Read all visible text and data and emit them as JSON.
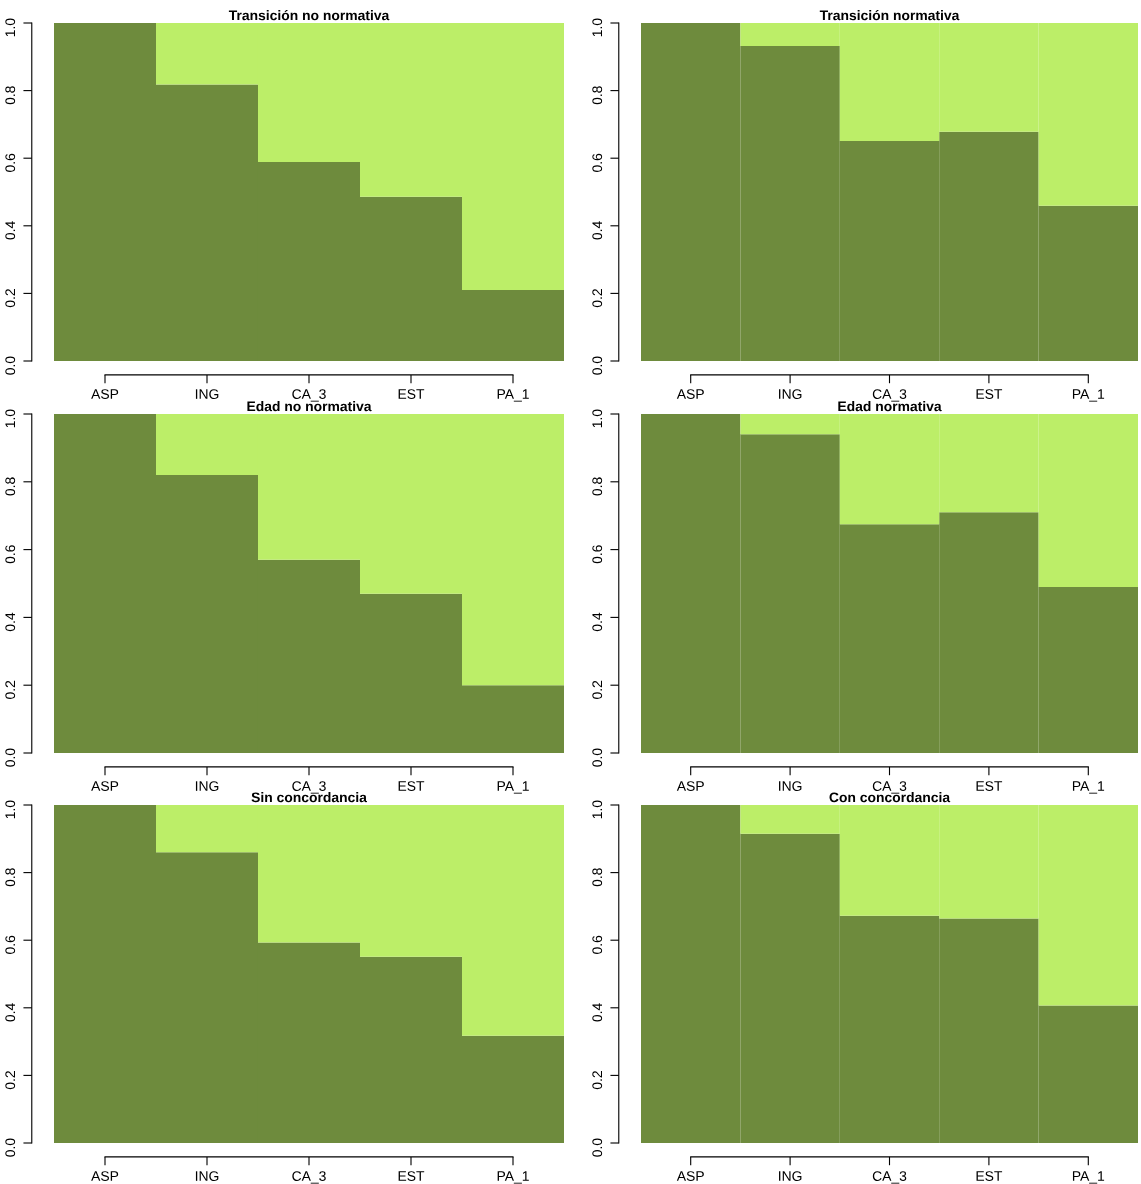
{
  "chart_data": [
    {
      "type": "bar",
      "stacked": true,
      "title": "Transición no normativa",
      "categories": [
        "ASP",
        "ING",
        "CA_3",
        "EST",
        "PA_1"
      ],
      "ylim": [
        0,
        1
      ],
      "yticks": [
        {
          "value": 0,
          "label": "0.0"
        },
        {
          "value": 0.2,
          "label": "0.2"
        },
        {
          "value": 0.4,
          "label": "0.4"
        },
        {
          "value": 0.6,
          "label": "0.6"
        },
        {
          "value": 0.8,
          "label": "0.8"
        },
        {
          "value": 1,
          "label": "1.0"
        }
      ],
      "series": [
        {
          "color": "#6e8b3d",
          "values": [
            1.0,
            0.818,
            0.589,
            0.486,
            0.21
          ]
        },
        {
          "color": "#bcee68",
          "values": [
            0.0,
            0.182,
            0.411,
            0.514,
            0.79
          ]
        }
      ]
    },
    {
      "type": "bar",
      "stacked": true,
      "title": "Transición normativa",
      "categories": [
        "ASP",
        "ING",
        "CA_3",
        "EST",
        "PA_1"
      ],
      "ylim": [
        0,
        1
      ],
      "yticks": [
        {
          "value": 0,
          "label": "0.0"
        },
        {
          "value": 0.2,
          "label": "0.2"
        },
        {
          "value": 0.4,
          "label": "0.4"
        },
        {
          "value": 0.6,
          "label": "0.6"
        },
        {
          "value": 0.8,
          "label": "0.8"
        },
        {
          "value": 1,
          "label": "1.0"
        }
      ],
      "series": [
        {
          "color": "#6e8b3d",
          "values": [
            1.0,
            0.932,
            0.651,
            0.678,
            0.459
          ]
        },
        {
          "color": "#bcee68",
          "values": [
            0.0,
            0.068,
            0.349,
            0.322,
            0.541
          ]
        }
      ]
    },
    {
      "type": "bar",
      "stacked": true,
      "title": "Edad no normativa",
      "categories": [
        "ASP",
        "ING",
        "CA_3",
        "EST",
        "PA_1"
      ],
      "ylim": [
        0,
        1
      ],
      "yticks": [
        {
          "value": 0,
          "label": "0.0"
        },
        {
          "value": 0.2,
          "label": "0.2"
        },
        {
          "value": 0.4,
          "label": "0.4"
        },
        {
          "value": 0.6,
          "label": "0.6"
        },
        {
          "value": 0.8,
          "label": "0.8"
        },
        {
          "value": 1,
          "label": "1.0"
        }
      ],
      "series": [
        {
          "color": "#6e8b3d",
          "values": [
            1.0,
            0.82,
            0.57,
            0.47,
            0.2
          ]
        },
        {
          "color": "#bcee68",
          "values": [
            0.0,
            0.18,
            0.43,
            0.53,
            0.8
          ]
        }
      ]
    },
    {
      "type": "bar",
      "stacked": true,
      "title": "Edad normativa",
      "categories": [
        "ASP",
        "ING",
        "CA_3",
        "EST",
        "PA_1"
      ],
      "ylim": [
        0,
        1
      ],
      "yticks": [
        {
          "value": 0,
          "label": "0.0"
        },
        {
          "value": 0.2,
          "label": "0.2"
        },
        {
          "value": 0.4,
          "label": "0.4"
        },
        {
          "value": 0.6,
          "label": "0.6"
        },
        {
          "value": 0.8,
          "label": "0.8"
        },
        {
          "value": 1,
          "label": "1.0"
        }
      ],
      "series": [
        {
          "color": "#6e8b3d",
          "values": [
            1.0,
            0.94,
            0.675,
            0.71,
            0.49
          ]
        },
        {
          "color": "#bcee68",
          "values": [
            0.0,
            0.06,
            0.325,
            0.29,
            0.51
          ]
        }
      ]
    },
    {
      "type": "bar",
      "stacked": true,
      "title": "Sin concordancia",
      "categories": [
        "ASP",
        "ING",
        "CA_3",
        "EST",
        "PA_1"
      ],
      "ylim": [
        0,
        1
      ],
      "yticks": [
        {
          "value": 0,
          "label": "0.0"
        },
        {
          "value": 0.2,
          "label": "0.2"
        },
        {
          "value": 0.4,
          "label": "0.4"
        },
        {
          "value": 0.6,
          "label": "0.6"
        },
        {
          "value": 0.8,
          "label": "0.8"
        },
        {
          "value": 1,
          "label": "1.0"
        }
      ],
      "series": [
        {
          "color": "#6e8b3d",
          "values": [
            1.0,
            0.86,
            0.593,
            0.551,
            0.317
          ]
        },
        {
          "color": "#bcee68",
          "values": [
            0.0,
            0.14,
            0.407,
            0.449,
            0.683
          ]
        }
      ]
    },
    {
      "type": "bar",
      "stacked": true,
      "title": "Con concordancia",
      "categories": [
        "ASP",
        "ING",
        "CA_3",
        "EST",
        "PA_1"
      ],
      "ylim": [
        0,
        1
      ],
      "yticks": [
        {
          "value": 0,
          "label": "0.0"
        },
        {
          "value": 0.2,
          "label": "0.2"
        },
        {
          "value": 0.4,
          "label": "0.4"
        },
        {
          "value": 0.6,
          "label": "0.6"
        },
        {
          "value": 0.8,
          "label": "0.8"
        },
        {
          "value": 1,
          "label": "1.0"
        }
      ],
      "series": [
        {
          "color": "#6e8b3d",
          "values": [
            1.0,
            0.915,
            0.672,
            0.664,
            0.407
          ]
        },
        {
          "color": "#bcee68",
          "values": [
            0.0,
            0.085,
            0.328,
            0.336,
            0.593
          ]
        }
      ]
    }
  ]
}
